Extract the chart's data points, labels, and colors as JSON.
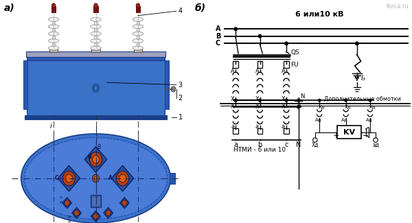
{
  "bg_color": "#ffffff",
  "label_a": "а)",
  "label_b": "б)",
  "watermark": "forca.ru",
  "title_6_10": "6 или10 кВ",
  "label_NTMI": "НТМИ - 6 или 10",
  "label_dop": "Дополнительные обмотки",
  "labels_abc_top": [
    "A",
    "B",
    "C"
  ],
  "label_QS": "QS",
  "label_FU": "FU",
  "label_I3": "I₃",
  "label_N": "N",
  "label_KV": "KV",
  "label_nums": [
    "1",
    "2",
    "3",
    "4"
  ],
  "blue_body": "#3a72c8",
  "blue_dark": "#1a3f8a",
  "blue_light": "#5a90dd",
  "blue_mid": "#2a58b0",
  "insulator_gray": "#d0d0d0",
  "insulator_red": "#7a1010",
  "line_color": "#000000",
  "gray_metal": "#888888"
}
